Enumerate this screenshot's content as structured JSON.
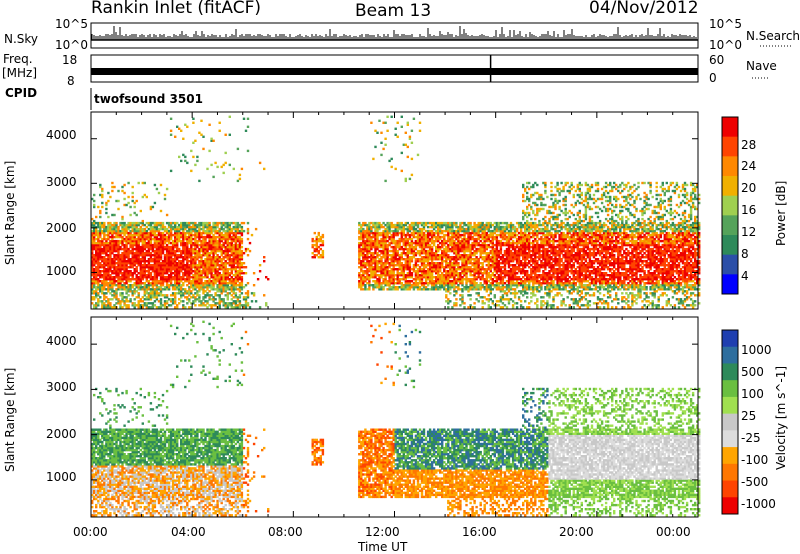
{
  "header": {
    "station": "Rankin Inlet (fitACF)",
    "beam": "Beam 13",
    "date": "04/Nov/2012"
  },
  "top_panels": {
    "nsky_label": "N.Sky",
    "nsky_ticks": [
      "10^5",
      "10^0"
    ],
    "nsearch_label": "N.Search",
    "nsearch_ticks": [
      "10^5",
      "10^0"
    ],
    "freq_label_1": "Freq.",
    "freq_label_2": "[MHz]",
    "freq_ticks": [
      "18",
      "8"
    ],
    "nave_label": "Nave",
    "nave_ticks": [
      "60",
      "0"
    ],
    "cpid_label": "CPID",
    "cpid_value": "twofsound 3501"
  },
  "colors": {
    "power_scale": [
      "#0000ff",
      "#2b4fa8",
      "#2e8a5a",
      "#55a35a",
      "#9fcf50",
      "#f0b000",
      "#ff8800",
      "#ff4400",
      "#ee0000"
    ],
    "velocity_scale": [
      "#1f3fb0",
      "#2e6e9e",
      "#2e8a5a",
      "#6abf40",
      "#a0e050",
      "#c8c8c8",
      "#dcdcdc",
      "#ffa500",
      "#ff7700",
      "#ff4400",
      "#ee0000"
    ]
  },
  "chart_data": [
    {
      "type": "heatmap",
      "title": "Power",
      "xlabel": "Time UT",
      "ylabel": "Slant Range [km]",
      "x_ticks": [
        "00:00",
        "04:00",
        "08:00",
        "12:00",
        "16:00",
        "20:00",
        "00:00"
      ],
      "xlim_hours": [
        0,
        24
      ],
      "ylim_km": [
        180,
        4600
      ],
      "y_ticks": [
        1000,
        2000,
        3000,
        4000
      ],
      "colorbar": {
        "label": "Power [dB]",
        "ticks": [
          4,
          8,
          12,
          16,
          20,
          24,
          28
        ],
        "range": [
          0,
          32
        ]
      }
    },
    {
      "type": "heatmap",
      "title": "Velocity",
      "xlabel": "Time UT",
      "ylabel": "Slant Range [km]",
      "x_ticks": [
        "00:00",
        "04:00",
        "08:00",
        "12:00",
        "16:00",
        "20:00",
        "00:00"
      ],
      "xlim_hours": [
        0,
        24
      ],
      "ylim_km": [
        180,
        4600
      ],
      "y_ticks": [
        1000,
        2000,
        3000,
        4000
      ],
      "colorbar": {
        "label": "Velocity [m s^-1]",
        "ticks": [
          "1000",
          "500",
          "100",
          "25",
          "-25",
          "-100",
          "-500",
          "-1000"
        ]
      }
    }
  ]
}
